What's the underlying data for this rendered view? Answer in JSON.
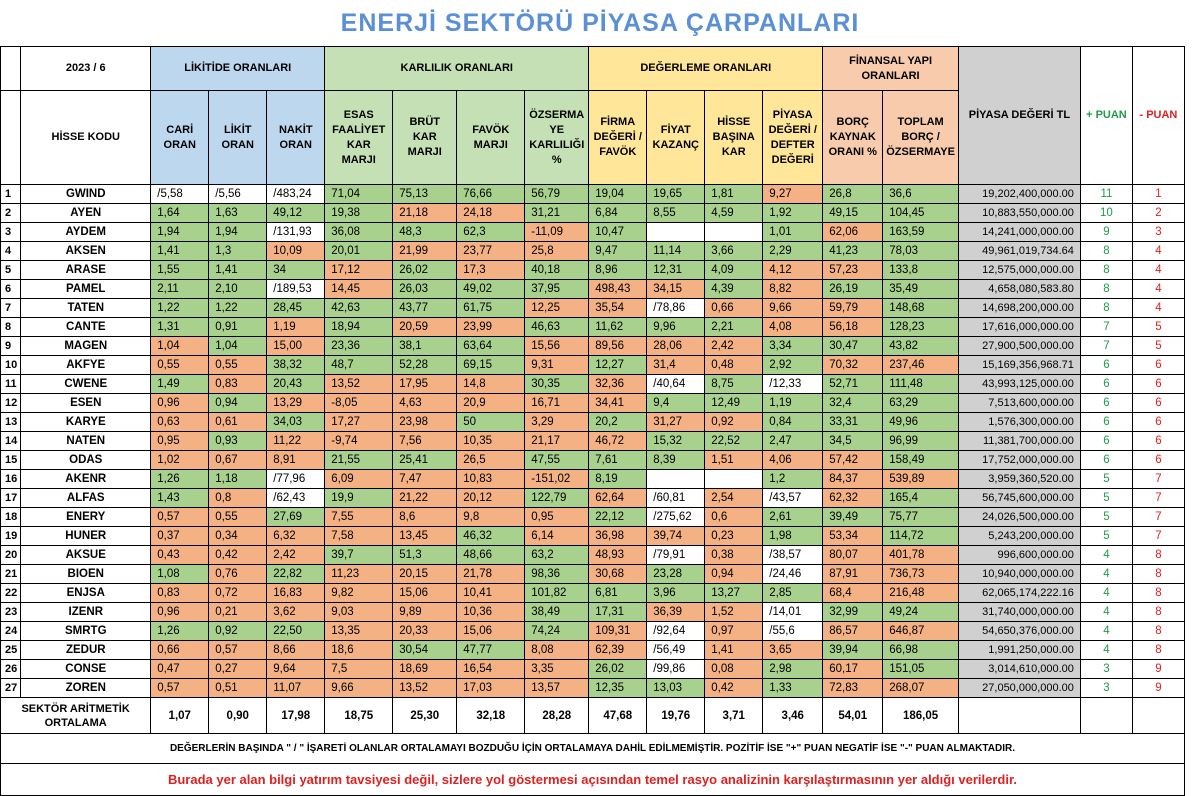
{
  "title": "ENERJİ SEKTÖRÜ PİYASA ÇARPANLARI",
  "period": "2023 / 6",
  "groups": {
    "likidite": "LİKİTİDE ORANLARI",
    "karlilik": "KARLILIK ORANLARI",
    "degerleme": "DEĞERLEME ORANLARI",
    "finansal": "FİNANSAL YAPI ORANLARI"
  },
  "headers": {
    "hisse": "HİSSE KODU",
    "cari": "CARİ ORAN",
    "likit": "LİKİT ORAN",
    "nakit": "NAKİT ORAN",
    "esas": "ESAS FAALİYET KAR MARJI",
    "brut": "BRÜT KAR MARJI",
    "favok": "FAVÖK MARJI",
    "ozsermaye_kar": "ÖZSERMA YE KARLILIĞI %",
    "fd_favok": "FİRMA DEĞERİ / FAVÖK",
    "fk": "FİYAT KAZANÇ",
    "hbk": "HİSSE BAŞINA KAR",
    "pd_dd": "PİYASA DEĞERİ / DEFTER DEĞERİ",
    "borc": "BORÇ KAYNAK ORANI %",
    "toplam_borc": "TOPLAM BORÇ / ÖZSERMAYE",
    "piyasa": "PİYASA DEĞERİ TL",
    "arti": "+ PUAN",
    "eksi": "- PUAN"
  },
  "rows": [
    {
      "n": "1",
      "code": "GWIND",
      "vals": [
        "/5,58",
        "/5,56",
        "/483,24",
        "71,04",
        "75,13",
        "76,66",
        "56,79",
        "19,04",
        "19,65",
        "1,81",
        "9,27",
        "26,8",
        "36,6"
      ],
      "cls": [
        "w",
        "w",
        "w",
        "g",
        "g",
        "g",
        "g",
        "g",
        "g",
        "g",
        "r",
        "g",
        "g"
      ],
      "pv": "19,202,400,000.00",
      "p": "11",
      "m": "1"
    },
    {
      "n": "2",
      "code": "AYEN",
      "vals": [
        "1,64",
        "1,63",
        "49,12",
        "19,38",
        "21,18",
        "24,18",
        "31,21",
        "6,84",
        "8,55",
        "4,59",
        "1,92",
        "49,15",
        "104,45"
      ],
      "cls": [
        "g",
        "g",
        "g",
        "g",
        "r",
        "r",
        "g",
        "g",
        "g",
        "g",
        "g",
        "g",
        "g"
      ],
      "pv": "10,883,550,000.00",
      "p": "10",
      "m": "2"
    },
    {
      "n": "3",
      "code": "AYDEM",
      "vals": [
        "1,94",
        "1,94",
        "/131,93",
        "36,08",
        "48,3",
        "62,3",
        "-11,09",
        "10,47",
        "",
        "",
        "1,01",
        "62,06",
        "163,59"
      ],
      "cls": [
        "g",
        "g",
        "w",
        "g",
        "g",
        "g",
        "r",
        "g",
        "w",
        "w",
        "g",
        "r",
        "g"
      ],
      "pv": "14,241,000,000.00",
      "p": "9",
      "m": "3"
    },
    {
      "n": "4",
      "code": "AKSEN",
      "vals": [
        "1,41",
        "1,3",
        "10,09",
        "20,01",
        "21,99",
        "23,77",
        "25,8",
        "9,47",
        "11,14",
        "3,66",
        "2,29",
        "41,23",
        "78,03"
      ],
      "cls": [
        "g",
        "g",
        "r",
        "g",
        "r",
        "r",
        "r",
        "g",
        "g",
        "g",
        "g",
        "g",
        "g"
      ],
      "pv": "49,961,019,734.64",
      "p": "8",
      "m": "4"
    },
    {
      "n": "5",
      "code": "ARASE",
      "vals": [
        "1,55",
        "1,41",
        "34",
        "17,12",
        "26,02",
        "17,3",
        "40,18",
        "8,96",
        "12,31",
        "4,09",
        "4,12",
        "57,23",
        "133,8"
      ],
      "cls": [
        "g",
        "g",
        "g",
        "r",
        "g",
        "r",
        "g",
        "g",
        "g",
        "g",
        "r",
        "r",
        "g"
      ],
      "pv": "12,575,000,000.00",
      "p": "8",
      "m": "4"
    },
    {
      "n": "6",
      "code": "PAMEL",
      "vals": [
        "2,11",
        "2,10",
        "/189,53",
        "14,45",
        "26,03",
        "49,02",
        "37,95",
        "498,43",
        "34,15",
        "4,39",
        "8,82",
        "26,19",
        "35,49"
      ],
      "cls": [
        "g",
        "g",
        "w",
        "r",
        "g",
        "g",
        "g",
        "r",
        "r",
        "g",
        "r",
        "g",
        "g"
      ],
      "pv": "4,658,080,583.80",
      "p": "8",
      "m": "4"
    },
    {
      "n": "7",
      "code": "TATEN",
      "vals": [
        "1,22",
        "1,22",
        "28,45",
        "42,63",
        "43,77",
        "61,75",
        "12,25",
        "35,54",
        "/78,86",
        "0,66",
        "9,66",
        "59,79",
        "148,68"
      ],
      "cls": [
        "g",
        "g",
        "g",
        "g",
        "g",
        "g",
        "r",
        "r",
        "w",
        "r",
        "r",
        "r",
        "g"
      ],
      "pv": "14,698,200,000.00",
      "p": "8",
      "m": "4"
    },
    {
      "n": "8",
      "code": "CANTE",
      "vals": [
        "1,31",
        "0,91",
        "1,19",
        "18,94",
        "20,59",
        "23,99",
        "46,63",
        "11,62",
        "9,96",
        "2,21",
        "4,08",
        "56,18",
        "128,23"
      ],
      "cls": [
        "g",
        "g",
        "r",
        "g",
        "r",
        "r",
        "g",
        "g",
        "g",
        "g",
        "r",
        "r",
        "g"
      ],
      "pv": "17,616,000,000.00",
      "p": "7",
      "m": "5"
    },
    {
      "n": "9",
      "code": "MAGEN",
      "vals": [
        "1,04",
        "1,04",
        "15,00",
        "23,36",
        "38,1",
        "63,64",
        "15,56",
        "89,56",
        "28,06",
        "2,42",
        "3,34",
        "30,47",
        "43,82"
      ],
      "cls": [
        "r",
        "g",
        "r",
        "g",
        "g",
        "g",
        "r",
        "r",
        "r",
        "r",
        "g",
        "g",
        "g"
      ],
      "pv": "27,900,500,000.00",
      "p": "7",
      "m": "5"
    },
    {
      "n": "10",
      "code": "AKFYE",
      "vals": [
        "0,55",
        "0,55",
        "38,32",
        "48,7",
        "52,28",
        "69,15",
        "9,31",
        "12,27",
        "31,4",
        "0,48",
        "2,92",
        "70,32",
        "237,46"
      ],
      "cls": [
        "r",
        "r",
        "g",
        "g",
        "g",
        "g",
        "r",
        "g",
        "r",
        "r",
        "g",
        "r",
        "r"
      ],
      "pv": "15,169,356,968.71",
      "p": "6",
      "m": "6"
    },
    {
      "n": "11",
      "code": "CWENE",
      "vals": [
        "1,49",
        "0,83",
        "20,43",
        "13,52",
        "17,95",
        "14,8",
        "30,35",
        "32,36",
        "/40,64",
        "8,75",
        "/12,33",
        "52,71",
        "111,48"
      ],
      "cls": [
        "g",
        "r",
        "g",
        "r",
        "r",
        "r",
        "g",
        "r",
        "w",
        "g",
        "w",
        "g",
        "g"
      ],
      "pv": "43,993,125,000.00",
      "p": "6",
      "m": "6"
    },
    {
      "n": "12",
      "code": "ESEN",
      "vals": [
        "0,96",
        "0,94",
        "13,29",
        "-8,05",
        "4,63",
        "20,9",
        "16,71",
        "34,41",
        "9,4",
        "12,49",
        "1,19",
        "32,4",
        "63,29"
      ],
      "cls": [
        "r",
        "g",
        "r",
        "r",
        "r",
        "r",
        "r",
        "r",
        "g",
        "g",
        "g",
        "g",
        "g"
      ],
      "pv": "7,513,600,000.00",
      "p": "6",
      "m": "6"
    },
    {
      "n": "13",
      "code": "KARYE",
      "vals": [
        "0,63",
        "0,61",
        "34,03",
        "17,27",
        "23,98",
        "50",
        "3,29",
        "20,2",
        "31,27",
        "0,92",
        "0,84",
        "33,31",
        "49,96"
      ],
      "cls": [
        "r",
        "r",
        "g",
        "r",
        "r",
        "g",
        "r",
        "g",
        "r",
        "r",
        "g",
        "g",
        "g"
      ],
      "pv": "1,576,300,000.00",
      "p": "6",
      "m": "6"
    },
    {
      "n": "14",
      "code": "NATEN",
      "vals": [
        "0,95",
        "0,93",
        "11,22",
        "-9,74",
        "7,56",
        "10,35",
        "21,17",
        "46,72",
        "15,32",
        "22,52",
        "2,47",
        "34,5",
        "96,99"
      ],
      "cls": [
        "r",
        "g",
        "r",
        "r",
        "r",
        "r",
        "r",
        "r",
        "g",
        "g",
        "g",
        "g",
        "g"
      ],
      "pv": "11,381,700,000.00",
      "p": "6",
      "m": "6"
    },
    {
      "n": "15",
      "code": "ODAS",
      "vals": [
        "1,02",
        "0,67",
        "8,91",
        "21,55",
        "25,41",
        "26,5",
        "47,55",
        "7,61",
        "8,39",
        "1,51",
        "4,06",
        "57,42",
        "158,49"
      ],
      "cls": [
        "r",
        "r",
        "r",
        "g",
        "g",
        "r",
        "g",
        "g",
        "g",
        "r",
        "r",
        "r",
        "g"
      ],
      "pv": "17,752,000,000.00",
      "p": "6",
      "m": "6"
    },
    {
      "n": "16",
      "code": "AKENR",
      "vals": [
        "1,26",
        "1,18",
        "/77,96",
        "6,09",
        "7,47",
        "10,83",
        "-151,02",
        "8,19",
        "",
        "",
        "1,2",
        "84,37",
        "539,89"
      ],
      "cls": [
        "g",
        "g",
        "w",
        "r",
        "r",
        "r",
        "r",
        "g",
        "w",
        "w",
        "g",
        "r",
        "r"
      ],
      "pv": "3,959,360,520.00",
      "p": "5",
      "m": "7"
    },
    {
      "n": "17",
      "code": "ALFAS",
      "vals": [
        "1,43",
        "0,8",
        "/62,43",
        "19,9",
        "21,22",
        "20,12",
        "122,79",
        "62,64",
        "/60,81",
        "2,54",
        "/43,57",
        "62,32",
        "165,4"
      ],
      "cls": [
        "g",
        "r",
        "w",
        "g",
        "r",
        "r",
        "g",
        "r",
        "w",
        "r",
        "w",
        "r",
        "g"
      ],
      "pv": "56,745,600,000.00",
      "p": "5",
      "m": "7"
    },
    {
      "n": "18",
      "code": "ENERY",
      "vals": [
        "0,57",
        "0,55",
        "27,69",
        "7,55",
        "8,6",
        "9,8",
        "0,95",
        "22,12",
        "/275,62",
        "0,6",
        "2,61",
        "39,49",
        "75,77"
      ],
      "cls": [
        "r",
        "r",
        "g",
        "r",
        "r",
        "r",
        "r",
        "g",
        "w",
        "r",
        "g",
        "g",
        "g"
      ],
      "pv": "24,026,500,000.00",
      "p": "5",
      "m": "7"
    },
    {
      "n": "19",
      "code": "HUNER",
      "vals": [
        "0,37",
        "0,34",
        "6,32",
        "7,58",
        "13,45",
        "46,32",
        "6,14",
        "36,98",
        "39,74",
        "0,23",
        "1,98",
        "53,34",
        "114,72"
      ],
      "cls": [
        "r",
        "r",
        "r",
        "r",
        "r",
        "g",
        "r",
        "r",
        "r",
        "r",
        "g",
        "r",
        "g"
      ],
      "pv": "5,243,200,000.00",
      "p": "5",
      "m": "7"
    },
    {
      "n": "20",
      "code": "AKSUE",
      "vals": [
        "0,43",
        "0,42",
        "2,42",
        "39,7",
        "51,3",
        "48,66",
        "63,2",
        "48,93",
        "/79,91",
        "0,38",
        "/38,57",
        "80,07",
        "401,78"
      ],
      "cls": [
        "r",
        "r",
        "r",
        "g",
        "g",
        "g",
        "g",
        "r",
        "w",
        "r",
        "w",
        "r",
        "r"
      ],
      "pv": "996,600,000.00",
      "p": "4",
      "m": "8"
    },
    {
      "n": "21",
      "code": "BIOEN",
      "vals": [
        "1,08",
        "0,76",
        "22,82",
        "11,23",
        "20,15",
        "21,78",
        "98,36",
        "30,68",
        "23,28",
        "0,94",
        "/24,46",
        "87,91",
        "736,73"
      ],
      "cls": [
        "g",
        "r",
        "g",
        "r",
        "r",
        "r",
        "g",
        "r",
        "g",
        "r",
        "w",
        "r",
        "r"
      ],
      "pv": "10,940,000,000.00",
      "p": "4",
      "m": "8"
    },
    {
      "n": "22",
      "code": "ENJSA",
      "vals": [
        "0,83",
        "0,72",
        "16,83",
        "9,82",
        "15,06",
        "10,41",
        "101,82",
        "6,81",
        "3,96",
        "13,27",
        "2,85",
        "68,4",
        "216,48"
      ],
      "cls": [
        "r",
        "r",
        "r",
        "r",
        "r",
        "r",
        "g",
        "g",
        "g",
        "g",
        "g",
        "r",
        "r"
      ],
      "pv": "62,065,174,222.16",
      "p": "4",
      "m": "8"
    },
    {
      "n": "23",
      "code": "IZENR",
      "vals": [
        "0,96",
        "0,21",
        "3,62",
        "9,03",
        "9,89",
        "10,36",
        "38,49",
        "17,31",
        "36,39",
        "1,52",
        "/14,01",
        "32,99",
        "49,24"
      ],
      "cls": [
        "r",
        "r",
        "r",
        "r",
        "r",
        "r",
        "g",
        "g",
        "r",
        "r",
        "w",
        "g",
        "g"
      ],
      "pv": "31,740,000,000.00",
      "p": "4",
      "m": "8"
    },
    {
      "n": "24",
      "code": "SMRTG",
      "vals": [
        "1,26",
        "0,92",
        "22,50",
        "13,35",
        "20,33",
        "15,06",
        "74,24",
        "109,31",
        "/92,64",
        "0,97",
        "/55,6",
        "86,57",
        "646,87"
      ],
      "cls": [
        "g",
        "g",
        "g",
        "r",
        "r",
        "r",
        "g",
        "r",
        "w",
        "r",
        "w",
        "r",
        "r"
      ],
      "pv": "54,650,376,000.00",
      "p": "4",
      "m": "8"
    },
    {
      "n": "25",
      "code": "ZEDUR",
      "vals": [
        "0,66",
        "0,57",
        "8,66",
        "18,6",
        "30,54",
        "47,77",
        "8,08",
        "62,39",
        "/56,49",
        "1,41",
        "3,65",
        "39,94",
        "66,98"
      ],
      "cls": [
        "r",
        "r",
        "r",
        "r",
        "g",
        "g",
        "r",
        "r",
        "w",
        "r",
        "r",
        "g",
        "g"
      ],
      "pv": "1,991,250,000.00",
      "p": "4",
      "m": "8"
    },
    {
      "n": "26",
      "code": "CONSE",
      "vals": [
        "0,47",
        "0,27",
        "9,64",
        "7,5",
        "18,69",
        "16,54",
        "3,35",
        "26,02",
        "/99,86",
        "0,08",
        "2,98",
        "60,17",
        "151,05"
      ],
      "cls": [
        "r",
        "r",
        "r",
        "r",
        "r",
        "r",
        "r",
        "g",
        "w",
        "r",
        "g",
        "r",
        "g"
      ],
      "pv": "3,014,610,000.00",
      "p": "3",
      "m": "9"
    },
    {
      "n": "27",
      "code": "ZOREN",
      "vals": [
        "0,57",
        "0,51",
        "11,07",
        "9,66",
        "13,52",
        "17,03",
        "13,57",
        "12,35",
        "13,03",
        "0,42",
        "1,33",
        "72,83",
        "268,07"
      ],
      "cls": [
        "r",
        "r",
        "r",
        "r",
        "r",
        "r",
        "r",
        "g",
        "g",
        "r",
        "g",
        "r",
        "r"
      ],
      "pv": "27,050,000,000.00",
      "p": "3",
      "m": "9"
    }
  ],
  "average": {
    "label": "SEKTÖR ARİTMETİK ORTALAMA",
    "vals": [
      "1,07",
      "0,90",
      "17,98",
      "18,75",
      "25,30",
      "32,18",
      "28,28",
      "47,68",
      "19,76",
      "3,71",
      "3,46",
      "54,01",
      "186,05"
    ]
  },
  "note": "DEĞERLERİN BAŞINDA \" / \" İŞARETİ OLANLAR ORTALAMAYI BOZDUĞU İÇİN ORTALAMAYA DAHİL EDİLMEMİŞTİR. POZİTİF İSE \"+\" PUAN NEGATİF İSE \"-\" PUAN ALMAKTADIR.",
  "disclaimer": "Burada yer alan bilgi yatırım tavsiyesi değil, sizlere yol göstermesi açısından temel rasyo analizinin karşılaştırmasının yer aldığı verilerdir.",
  "colors": {
    "green": "#a9d18e",
    "orange": "#f4b183",
    "blue_header": "#bdd7ee",
    "green_header": "#c5e0b4",
    "yellow_header": "#ffe699",
    "salmon_header": "#f8cbad",
    "gray": "#d0d0d0",
    "title": "#5b8fd6",
    "plus": "#1f9c48",
    "minus": "#e02020"
  }
}
